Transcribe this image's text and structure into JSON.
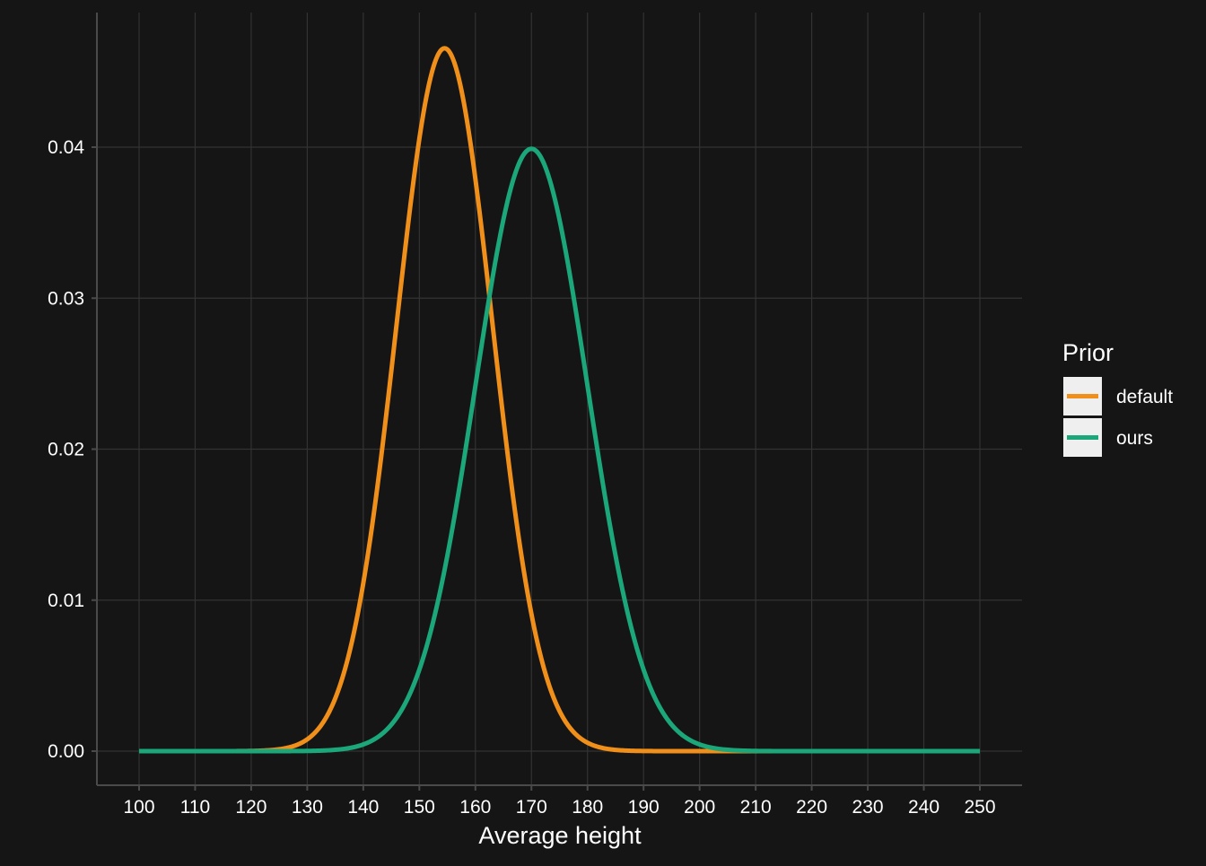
{
  "chart_data": {
    "type": "line",
    "xlabel": "Average height",
    "ylabel": "",
    "xlim": [
      100,
      250
    ],
    "ylim": [
      0,
      0.04
    ],
    "x_ticks": [
      "100",
      "110",
      "120",
      "130",
      "140",
      "150",
      "160",
      "170",
      "180",
      "190",
      "200",
      "210",
      "220",
      "230",
      "240",
      "250"
    ],
    "y_ticks": [
      "0.00",
      "0.01",
      "0.02",
      "0.03",
      "0.04"
    ],
    "grid": true,
    "legend": {
      "title": "Prior",
      "placement": "right"
    },
    "series": [
      {
        "name": "default",
        "color": "#F0901A",
        "distribution": "normal",
        "mean": 154.5,
        "sd": 8.57
      },
      {
        "name": "ours",
        "color": "#1BA77A",
        "distribution": "normal",
        "mean": 170,
        "sd": 10
      }
    ]
  }
}
